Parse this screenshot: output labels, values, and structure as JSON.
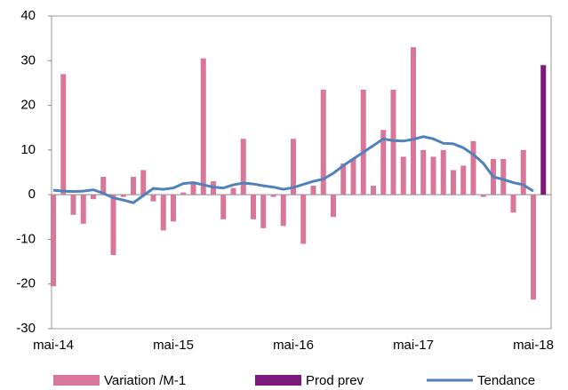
{
  "chart_data": {
    "type": "bar_line",
    "categories": [
      "mai-14",
      null,
      null,
      null,
      null,
      null,
      null,
      null,
      null,
      null,
      null,
      null,
      "mai-15",
      null,
      null,
      null,
      null,
      null,
      null,
      null,
      null,
      null,
      null,
      null,
      "mai-16",
      null,
      null,
      null,
      null,
      null,
      null,
      null,
      null,
      null,
      null,
      null,
      "mai-17",
      null,
      null,
      null,
      null,
      null,
      null,
      null,
      null,
      null,
      null,
      null,
      "mai-18",
      null
    ],
    "series": [
      {
        "name": "Variation /M-1",
        "color": "#d9779b",
        "kind": "bar",
        "values": [
          -20.5,
          27,
          -4.5,
          -6.5,
          -1,
          4,
          -13.5,
          -0.5,
          4,
          5.5,
          -1.5,
          -8,
          -6,
          0.5,
          2.5,
          30.5,
          3,
          -5.5,
          1.5,
          12.5,
          -5.5,
          -7.5,
          -0.5,
          -7,
          12.5,
          -11,
          2,
          23.5,
          -5,
          7,
          8,
          23.5,
          2,
          14.5,
          23.5,
          8.5,
          33,
          10,
          8.5,
          10,
          5.5,
          6.5,
          12,
          -0.5,
          8,
          8,
          -4,
          10,
          -23.5,
          null
        ]
      },
      {
        "name": "Prod prev",
        "color": "#7b1a7a",
        "kind": "bar",
        "values": [
          null,
          null,
          null,
          null,
          null,
          null,
          null,
          null,
          null,
          null,
          null,
          null,
          null,
          null,
          null,
          null,
          null,
          null,
          null,
          null,
          null,
          null,
          null,
          null,
          null,
          null,
          null,
          null,
          null,
          null,
          null,
          null,
          null,
          null,
          null,
          null,
          null,
          null,
          null,
          null,
          null,
          null,
          null,
          null,
          null,
          null,
          null,
          null,
          null,
          29
        ]
      },
      {
        "name": "Tendance",
        "color": "#4f81bd",
        "kind": "line",
        "values": [
          1,
          0.8,
          0.7,
          0.8,
          1.1,
          0.3,
          -0.7,
          -1.2,
          -1.8,
          -0.2,
          1.4,
          1.2,
          1.5,
          2.5,
          2.7,
          2.2,
          1.7,
          1.5,
          2.2,
          2.6,
          2.4,
          2,
          1.7,
          1.2,
          1.6,
          2.3,
          3,
          3.5,
          4.8,
          6.5,
          8,
          9.5,
          11,
          12.5,
          12.1,
          12,
          12.4,
          13,
          12.5,
          11.5,
          11.4,
          10.5,
          9,
          7,
          4,
          3.4,
          2.7,
          2.2,
          0.8,
          null
        ]
      }
    ],
    "ylim": [
      -30,
      40
    ],
    "yticks": [
      -30,
      -20,
      -10,
      0,
      10,
      20,
      30,
      40
    ],
    "grid": false,
    "legend": "bottom"
  }
}
